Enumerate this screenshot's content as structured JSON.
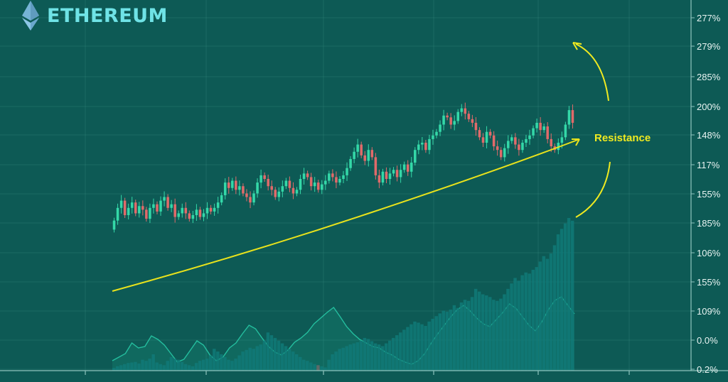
{
  "brand": {
    "title": "ETHEREUM",
    "logo_icon": "ethereum-diamond-icon"
  },
  "colors": {
    "background": "#0d5a55",
    "grid": "#2a7a72",
    "candle_up": "#34d8a8",
    "candle_down": "#e06a6a",
    "volume_bar": "#117a78",
    "volume_highlight": "#6b6b6b",
    "trendline": "#e8e21c",
    "annotation": "#f0ea20",
    "axis_text": "#e8f4f2",
    "oscillator": "#2bd6b0"
  },
  "chart_data": {
    "type": "candlestick",
    "y_axis_labels": [
      "277%",
      "279%",
      "285%",
      "200%",
      "148%",
      "117%",
      "155%",
      "185%",
      "106%",
      "155%",
      "109%",
      "0.0%",
      "0.2%"
    ],
    "annotation": "Resistance",
    "ylim": [
      0,
      100
    ],
    "candles": [
      [
        32,
        37
      ],
      [
        37,
        44
      ],
      [
        44,
        48
      ],
      [
        48,
        40
      ],
      [
        40,
        44
      ],
      [
        44,
        47
      ],
      [
        47,
        41
      ],
      [
        41,
        45
      ],
      [
        45,
        43
      ],
      [
        43,
        38
      ],
      [
        38,
        44
      ],
      [
        44,
        46
      ],
      [
        46,
        42
      ],
      [
        42,
        48
      ],
      [
        48,
        50
      ],
      [
        50,
        44
      ],
      [
        44,
        46
      ],
      [
        46,
        39
      ],
      [
        39,
        41
      ],
      [
        41,
        44
      ],
      [
        44,
        41
      ],
      [
        41,
        38
      ],
      [
        38,
        40
      ],
      [
        40,
        43
      ],
      [
        43,
        39
      ],
      [
        39,
        41
      ],
      [
        41,
        44
      ],
      [
        44,
        42
      ],
      [
        42,
        44
      ],
      [
        44,
        47
      ],
      [
        47,
        51
      ],
      [
        51,
        58
      ],
      [
        58,
        55
      ],
      [
        55,
        59
      ],
      [
        59,
        54
      ],
      [
        54,
        56
      ],
      [
        56,
        52
      ],
      [
        52,
        50
      ],
      [
        50,
        47
      ],
      [
        47,
        52
      ],
      [
        52,
        58
      ],
      [
        58,
        62
      ],
      [
        62,
        60
      ],
      [
        60,
        56
      ],
      [
        56,
        54
      ],
      [
        54,
        50
      ],
      [
        50,
        53
      ],
      [
        53,
        56
      ],
      [
        56,
        59
      ],
      [
        59,
        55
      ],
      [
        55,
        52
      ],
      [
        52,
        54
      ],
      [
        54,
        60
      ],
      [
        60,
        63
      ],
      [
        63,
        61
      ],
      [
        61,
        56
      ],
      [
        56,
        58
      ],
      [
        58,
        54
      ],
      [
        54,
        57
      ],
      [
        57,
        59
      ],
      [
        59,
        63
      ],
      [
        63,
        61
      ],
      [
        61,
        58
      ],
      [
        58,
        60
      ],
      [
        60,
        62
      ],
      [
        62,
        66
      ],
      [
        66,
        71
      ],
      [
        71,
        75
      ],
      [
        75,
        79
      ],
      [
        79,
        73
      ],
      [
        73,
        70
      ],
      [
        70,
        76
      ],
      [
        76,
        72
      ],
      [
        72,
        62
      ],
      [
        62,
        58
      ],
      [
        58,
        64
      ],
      [
        64,
        60
      ],
      [
        60,
        63
      ],
      [
        63,
        65
      ],
      [
        65,
        61
      ],
      [
        61,
        65
      ],
      [
        65,
        68
      ],
      [
        68,
        64
      ],
      [
        64,
        69
      ],
      [
        69,
        76
      ],
      [
        76,
        79
      ],
      [
        79,
        80
      ],
      [
        80,
        76
      ],
      [
        76,
        82
      ],
      [
        82,
        84
      ],
      [
        84,
        86
      ],
      [
        86,
        90
      ],
      [
        90,
        95
      ],
      [
        95,
        94
      ],
      [
        94,
        90
      ],
      [
        90,
        92
      ],
      [
        92,
        97
      ],
      [
        97,
        99
      ],
      [
        99,
        96
      ],
      [
        96,
        93
      ],
      [
        93,
        91
      ],
      [
        91,
        87
      ],
      [
        87,
        83
      ],
      [
        83,
        80
      ],
      [
        80,
        86
      ],
      [
        86,
        84
      ],
      [
        84,
        78
      ],
      [
        78,
        76
      ],
      [
        76,
        72
      ],
      [
        72,
        77
      ],
      [
        77,
        81
      ],
      [
        81,
        83
      ],
      [
        83,
        79
      ],
      [
        79,
        76
      ],
      [
        76,
        80
      ],
      [
        80,
        82
      ],
      [
        82,
        84
      ],
      [
        84,
        88
      ],
      [
        88,
        91
      ],
      [
        91,
        87
      ],
      [
        87,
        89
      ],
      [
        89,
        82
      ],
      [
        82,
        78
      ],
      [
        78,
        76
      ],
      [
        76,
        80
      ],
      [
        80,
        83
      ],
      [
        83,
        90
      ],
      [
        90,
        98
      ],
      [
        98,
        91
      ]
    ],
    "volume": [
      5,
      8,
      10,
      12,
      14,
      15,
      16,
      13,
      20,
      18,
      22,
      30,
      15,
      12,
      10,
      18,
      25,
      22,
      20,
      16,
      12,
      10,
      8,
      14,
      18,
      20,
      22,
      28,
      40,
      35,
      30,
      25,
      20,
      18,
      22,
      28,
      35,
      38,
      42,
      40,
      45,
      48,
      55,
      70,
      65,
      60,
      55,
      50,
      45,
      40,
      35,
      30,
      25,
      20,
      18,
      15,
      12,
      10,
      8,
      6,
      20,
      30,
      35,
      40,
      42,
      45,
      48,
      50,
      52,
      55,
      60,
      58,
      54,
      50,
      48,
      45,
      50,
      55,
      60,
      65,
      70,
      75,
      80,
      85,
      90,
      88,
      85,
      82,
      90,
      95,
      100,
      105,
      110,
      108,
      112,
      120,
      115,
      125,
      130,
      128,
      135,
      150,
      145,
      140,
      138,
      135,
      130,
      128,
      132,
      140,
      150,
      160,
      170,
      165,
      175,
      180,
      178,
      185,
      190,
      200,
      210,
      205,
      215,
      230,
      250,
      260,
      270,
      280,
      275
    ],
    "volume_highlight_index": 57,
    "oscillator": [
      0.1,
      0.15,
      0.2,
      0.35,
      0.28,
      0.3,
      0.45,
      0.4,
      0.32,
      0.2,
      0.08,
      0.12,
      0.25,
      0.38,
      0.32,
      0.18,
      0.1,
      0.15,
      0.28,
      0.35,
      0.48,
      0.6,
      0.55,
      0.42,
      0.3,
      0.22,
      0.18,
      0.25,
      0.36,
      0.42,
      0.5,
      0.62,
      0.7,
      0.78,
      0.85,
      0.72,
      0.58,
      0.48,
      0.4,
      0.35,
      0.3,
      0.28,
      0.22,
      0.18,
      0.12,
      0.08,
      0.05,
      0.1,
      0.2,
      0.35,
      0.48,
      0.6,
      0.72,
      0.82,
      0.88,
      0.8,
      0.7,
      0.62,
      0.58,
      0.68,
      0.78,
      0.9,
      0.84,
      0.72,
      0.6,
      0.52,
      0.65,
      0.82,
      0.95,
      1.0,
      0.88,
      0.76
    ]
  }
}
